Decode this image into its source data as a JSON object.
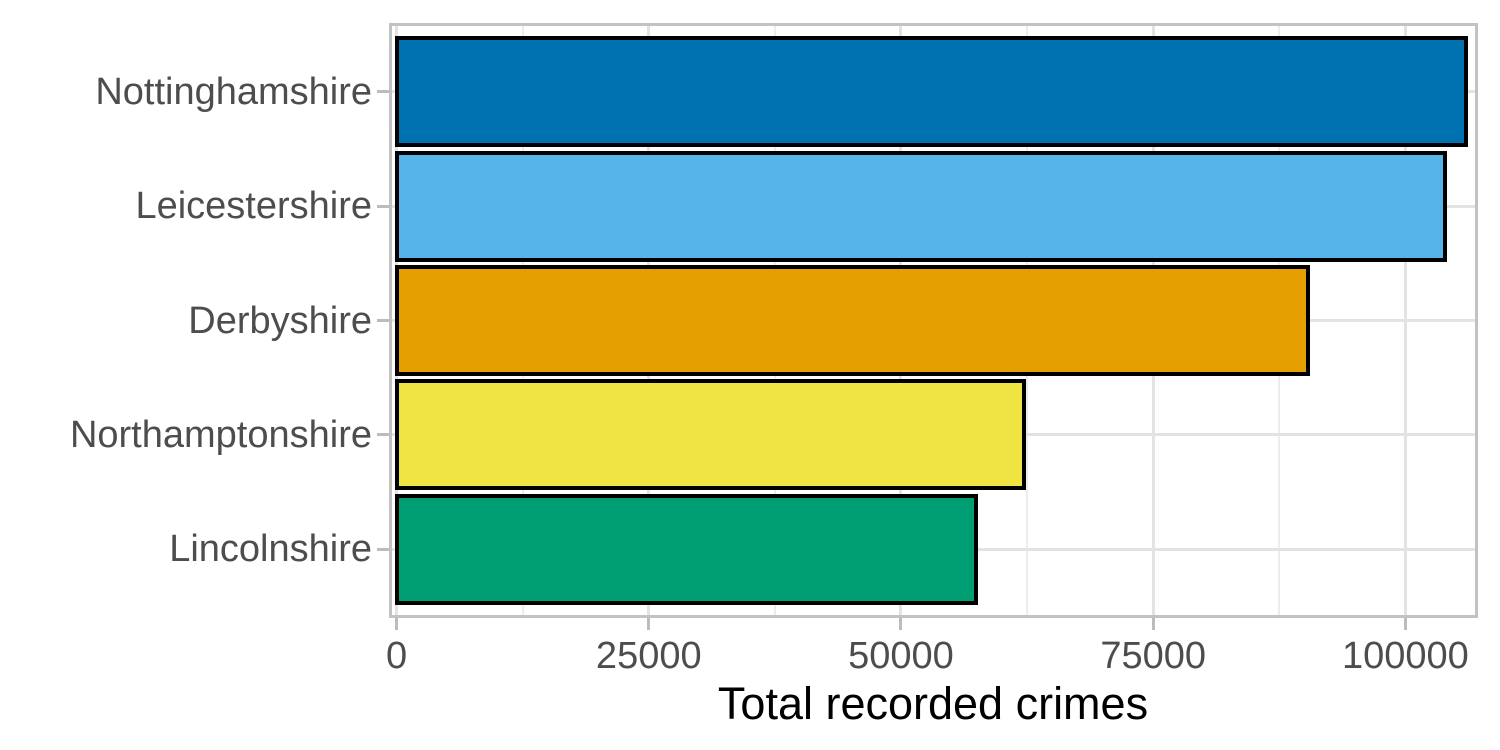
{
  "chart_data": {
    "type": "bar",
    "orientation": "horizontal",
    "title": "",
    "xlabel": "Total recorded crimes",
    "ylabel": "",
    "categories": [
      "Nottinghamshire",
      "Leicestershire",
      "Derbyshire",
      "Northamptonshire",
      "Lincolnshire"
    ],
    "values": [
      106000,
      103900,
      90300,
      62200,
      57400
    ],
    "bar_colors": [
      "#0072B2",
      "#56B4E9",
      "#E69F00",
      "#F0E442",
      "#009E73"
    ],
    "bar_outline_color": "#000000",
    "x_major_ticks": [
      0,
      25000,
      50000,
      75000,
      100000
    ],
    "x_major_tick_labels": [
      "0",
      "25000",
      "50000",
      "75000",
      "100000"
    ],
    "x_minor_ticks": [
      12500,
      37500,
      62500,
      87500
    ],
    "xlim": [
      -750,
      107200
    ],
    "grid": "on",
    "legend": "none",
    "colors": {
      "background": "#ffffff",
      "panel_background": "#ffffff",
      "panel_border": "#c2c2c2",
      "grid_major": "#e3e3e3",
      "grid_minor": "#ededed",
      "tick_mark": "#bcbcbc",
      "tick_label": "#4d4d4d",
      "axis_title": "#000000"
    }
  }
}
